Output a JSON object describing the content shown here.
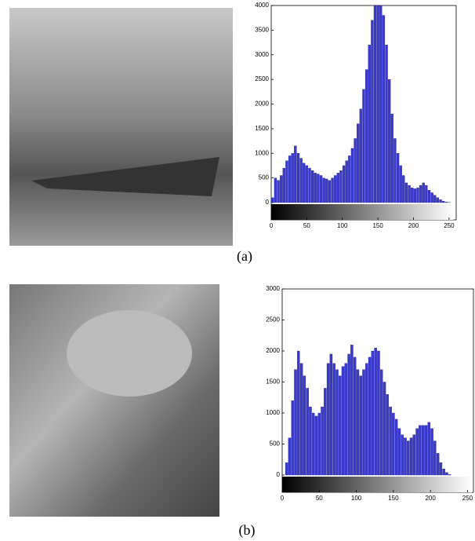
{
  "chart_data": [
    {
      "type": "histogram",
      "caption": "(a)",
      "color": "#3a3ad0",
      "bins": [
        0,
        4,
        8,
        12,
        16,
        20,
        24,
        28,
        32,
        36,
        40,
        44,
        48,
        52,
        56,
        60,
        64,
        68,
        72,
        76,
        80,
        84,
        88,
        92,
        96,
        100,
        104,
        108,
        112,
        116,
        120,
        124,
        128,
        132,
        136,
        140,
        144,
        148,
        152,
        156,
        160,
        164,
        168,
        172,
        176,
        180,
        184,
        188,
        192,
        196,
        200,
        204,
        208,
        212,
        216,
        220,
        224,
        228,
        232,
        236,
        240,
        244,
        248,
        252,
        256
      ],
      "counts": [
        100,
        500,
        450,
        550,
        700,
        850,
        950,
        1000,
        1150,
        1000,
        900,
        800,
        750,
        700,
        650,
        600,
        580,
        550,
        500,
        480,
        450,
        500,
        550,
        600,
        650,
        750,
        850,
        950,
        1100,
        1300,
        1600,
        1900,
        2300,
        2700,
        3200,
        3700,
        4000,
        4000,
        4000,
        3800,
        3200,
        2500,
        1800,
        1300,
        1000,
        750,
        550,
        400,
        350,
        300,
        280,
        300,
        350,
        400,
        350,
        250,
        200,
        150,
        100,
        60,
        30,
        10,
        5,
        0
      ],
      "xlim": [
        0,
        260
      ],
      "ylim": [
        0,
        4000
      ],
      "xticks": [
        0,
        50,
        100,
        150,
        200,
        250
      ],
      "yticks": [
        0,
        500,
        1000,
        1500,
        2000,
        2500,
        3000,
        3500,
        4000
      ]
    },
    {
      "type": "histogram",
      "caption": "(b)",
      "color": "#3a3ad0",
      "bins": [
        0,
        4,
        8,
        12,
        16,
        20,
        24,
        28,
        32,
        36,
        40,
        44,
        48,
        52,
        56,
        60,
        64,
        68,
        72,
        76,
        80,
        84,
        88,
        92,
        96,
        100,
        104,
        108,
        112,
        116,
        120,
        124,
        128,
        132,
        136,
        140,
        144,
        148,
        152,
        156,
        160,
        164,
        168,
        172,
        176,
        180,
        184,
        188,
        192,
        196,
        200,
        204,
        208,
        212,
        216,
        220,
        224,
        228,
        232,
        236,
        240,
        244,
        248,
        252,
        256
      ],
      "counts": [
        0,
        200,
        600,
        1200,
        1700,
        2000,
        1800,
        1600,
        1400,
        1100,
        1000,
        950,
        1000,
        1100,
        1400,
        1800,
        1950,
        1800,
        1700,
        1600,
        1750,
        1800,
        1950,
        2100,
        1900,
        1700,
        1600,
        1700,
        1800,
        1900,
        2000,
        2050,
        2000,
        1700,
        1500,
        1300,
        1100,
        1000,
        900,
        750,
        650,
        600,
        550,
        600,
        650,
        750,
        800,
        800,
        800,
        850,
        750,
        550,
        350,
        200,
        100,
        40,
        10,
        0,
        0,
        0,
        0,
        0,
        0,
        0
      ],
      "xlim": [
        0,
        258
      ],
      "ylim": [
        0,
        3000
      ],
      "xticks": [
        0,
        50,
        100,
        150,
        200,
        250
      ],
      "yticks": [
        0,
        500,
        1000,
        1500,
        2000,
        2500,
        3000
      ]
    }
  ]
}
